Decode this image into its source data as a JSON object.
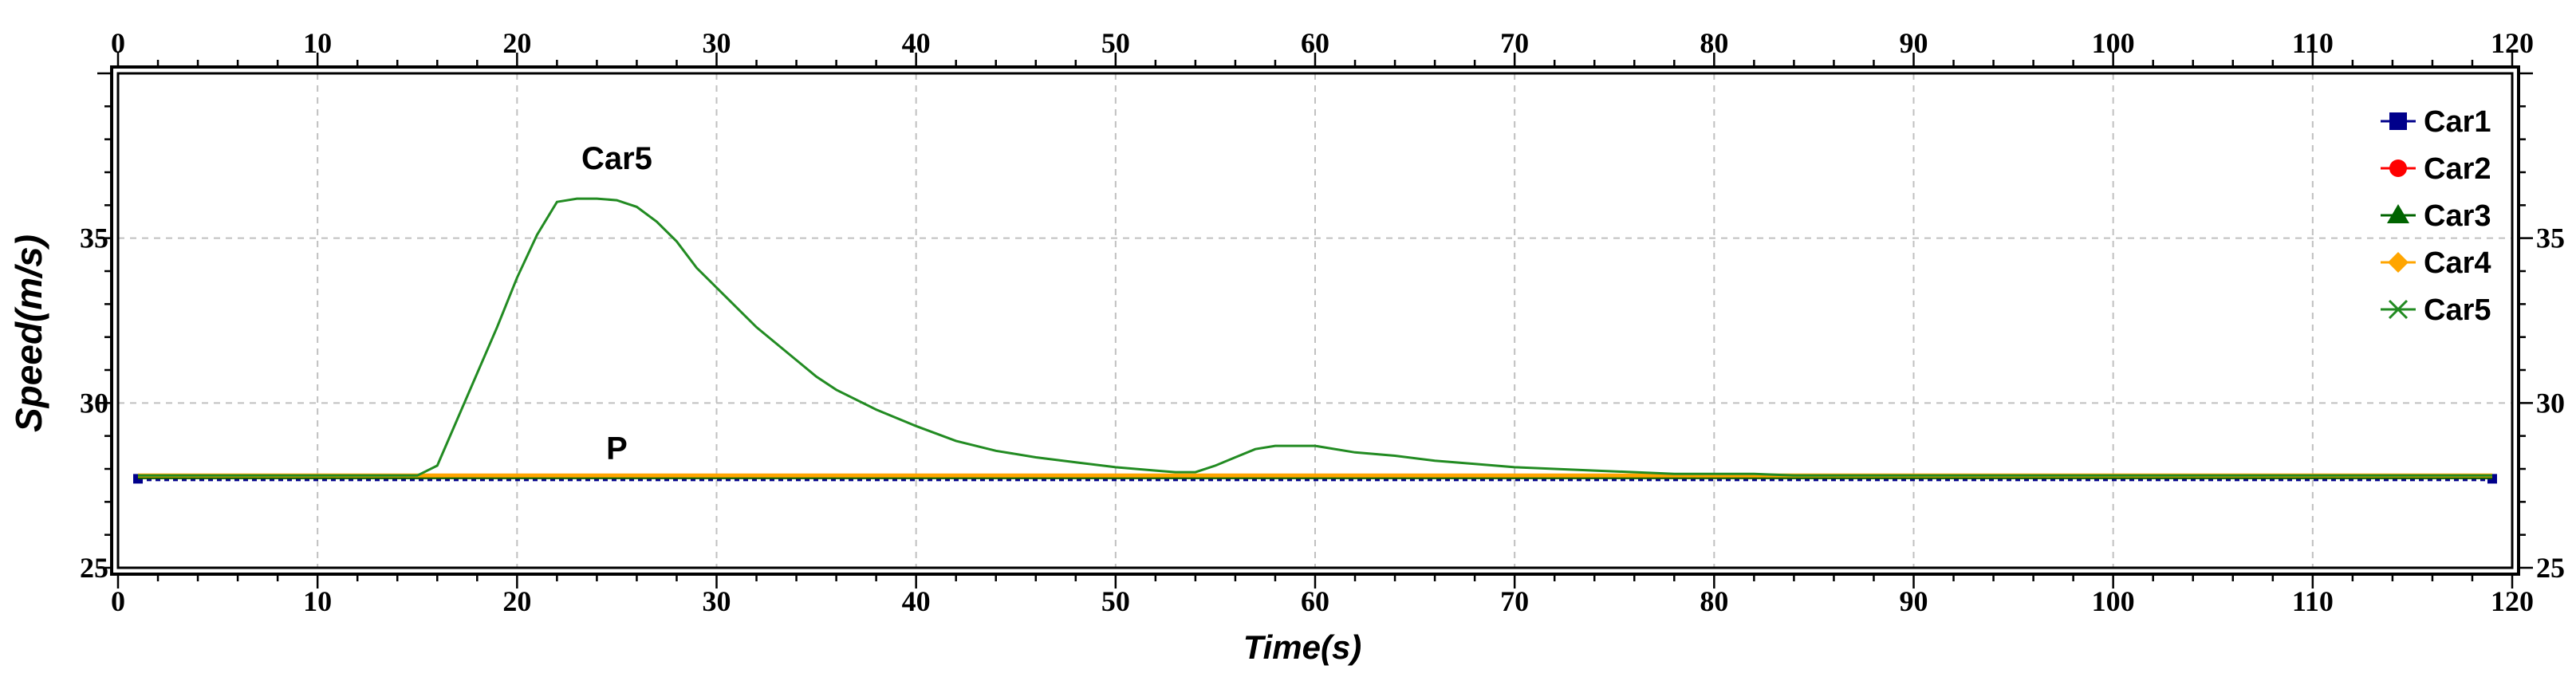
{
  "chart_data": {
    "type": "line",
    "title": "",
    "xlabel": "Time(s)",
    "ylabel": "Speed(m/s)",
    "xlim": [
      0,
      120
    ],
    "ylim": [
      25,
      40
    ],
    "x_ticks": [
      0,
      10,
      20,
      30,
      40,
      50,
      60,
      70,
      80,
      90,
      100,
      110,
      120
    ],
    "y_ticks": [
      25,
      30,
      35
    ],
    "grid": true,
    "legend_position": "top-right",
    "annotations": [
      {
        "text": "Car5",
        "x": 25,
        "y": 37.1
      },
      {
        "text": "P",
        "x": 25,
        "y": 28.3
      }
    ],
    "series": [
      {
        "name": "Car1",
        "color": "#00008b",
        "marker": "square",
        "x": [
          1,
          119
        ],
        "y": [
          27.7,
          27.7
        ]
      },
      {
        "name": "Car2",
        "color": "#ff0000",
        "marker": "circle",
        "x": [
          1,
          119
        ],
        "y": [
          27.75,
          27.75
        ]
      },
      {
        "name": "Car3",
        "color": "#006400",
        "marker": "triangle",
        "x": [
          1,
          119
        ],
        "y": [
          27.75,
          27.75
        ]
      },
      {
        "name": "Car4",
        "color": "#ffa500",
        "marker": "diamond",
        "x": [
          1,
          119
        ],
        "y": [
          27.8,
          27.8
        ]
      },
      {
        "name": "Car5",
        "color": "#228b22",
        "marker": "x",
        "x": [
          1,
          15,
          16,
          17,
          18,
          19,
          20,
          21,
          22,
          23,
          24,
          25,
          26,
          27,
          28,
          29,
          30,
          32,
          34,
          35,
          36,
          38,
          40,
          42,
          44,
          46,
          48,
          50,
          52,
          53,
          54,
          55,
          56,
          57,
          58,
          60,
          62,
          64,
          66,
          68,
          70,
          72,
          74,
          76,
          78,
          80,
          82,
          84,
          85,
          119
        ],
        "y": [
          27.8,
          27.8,
          28.1,
          29.5,
          30.9,
          32.3,
          33.8,
          35.1,
          36.1,
          36.2,
          36.2,
          36.15,
          35.95,
          35.5,
          34.9,
          34.1,
          33.5,
          32.3,
          31.3,
          30.8,
          30.4,
          29.8,
          29.3,
          28.85,
          28.55,
          28.35,
          28.2,
          28.05,
          27.95,
          27.9,
          27.9,
          28.1,
          28.35,
          28.6,
          28.7,
          28.7,
          28.5,
          28.4,
          28.25,
          28.15,
          28.05,
          28.0,
          27.95,
          27.9,
          27.85,
          27.85,
          27.85,
          27.8,
          27.8,
          27.8
        ]
      }
    ]
  }
}
